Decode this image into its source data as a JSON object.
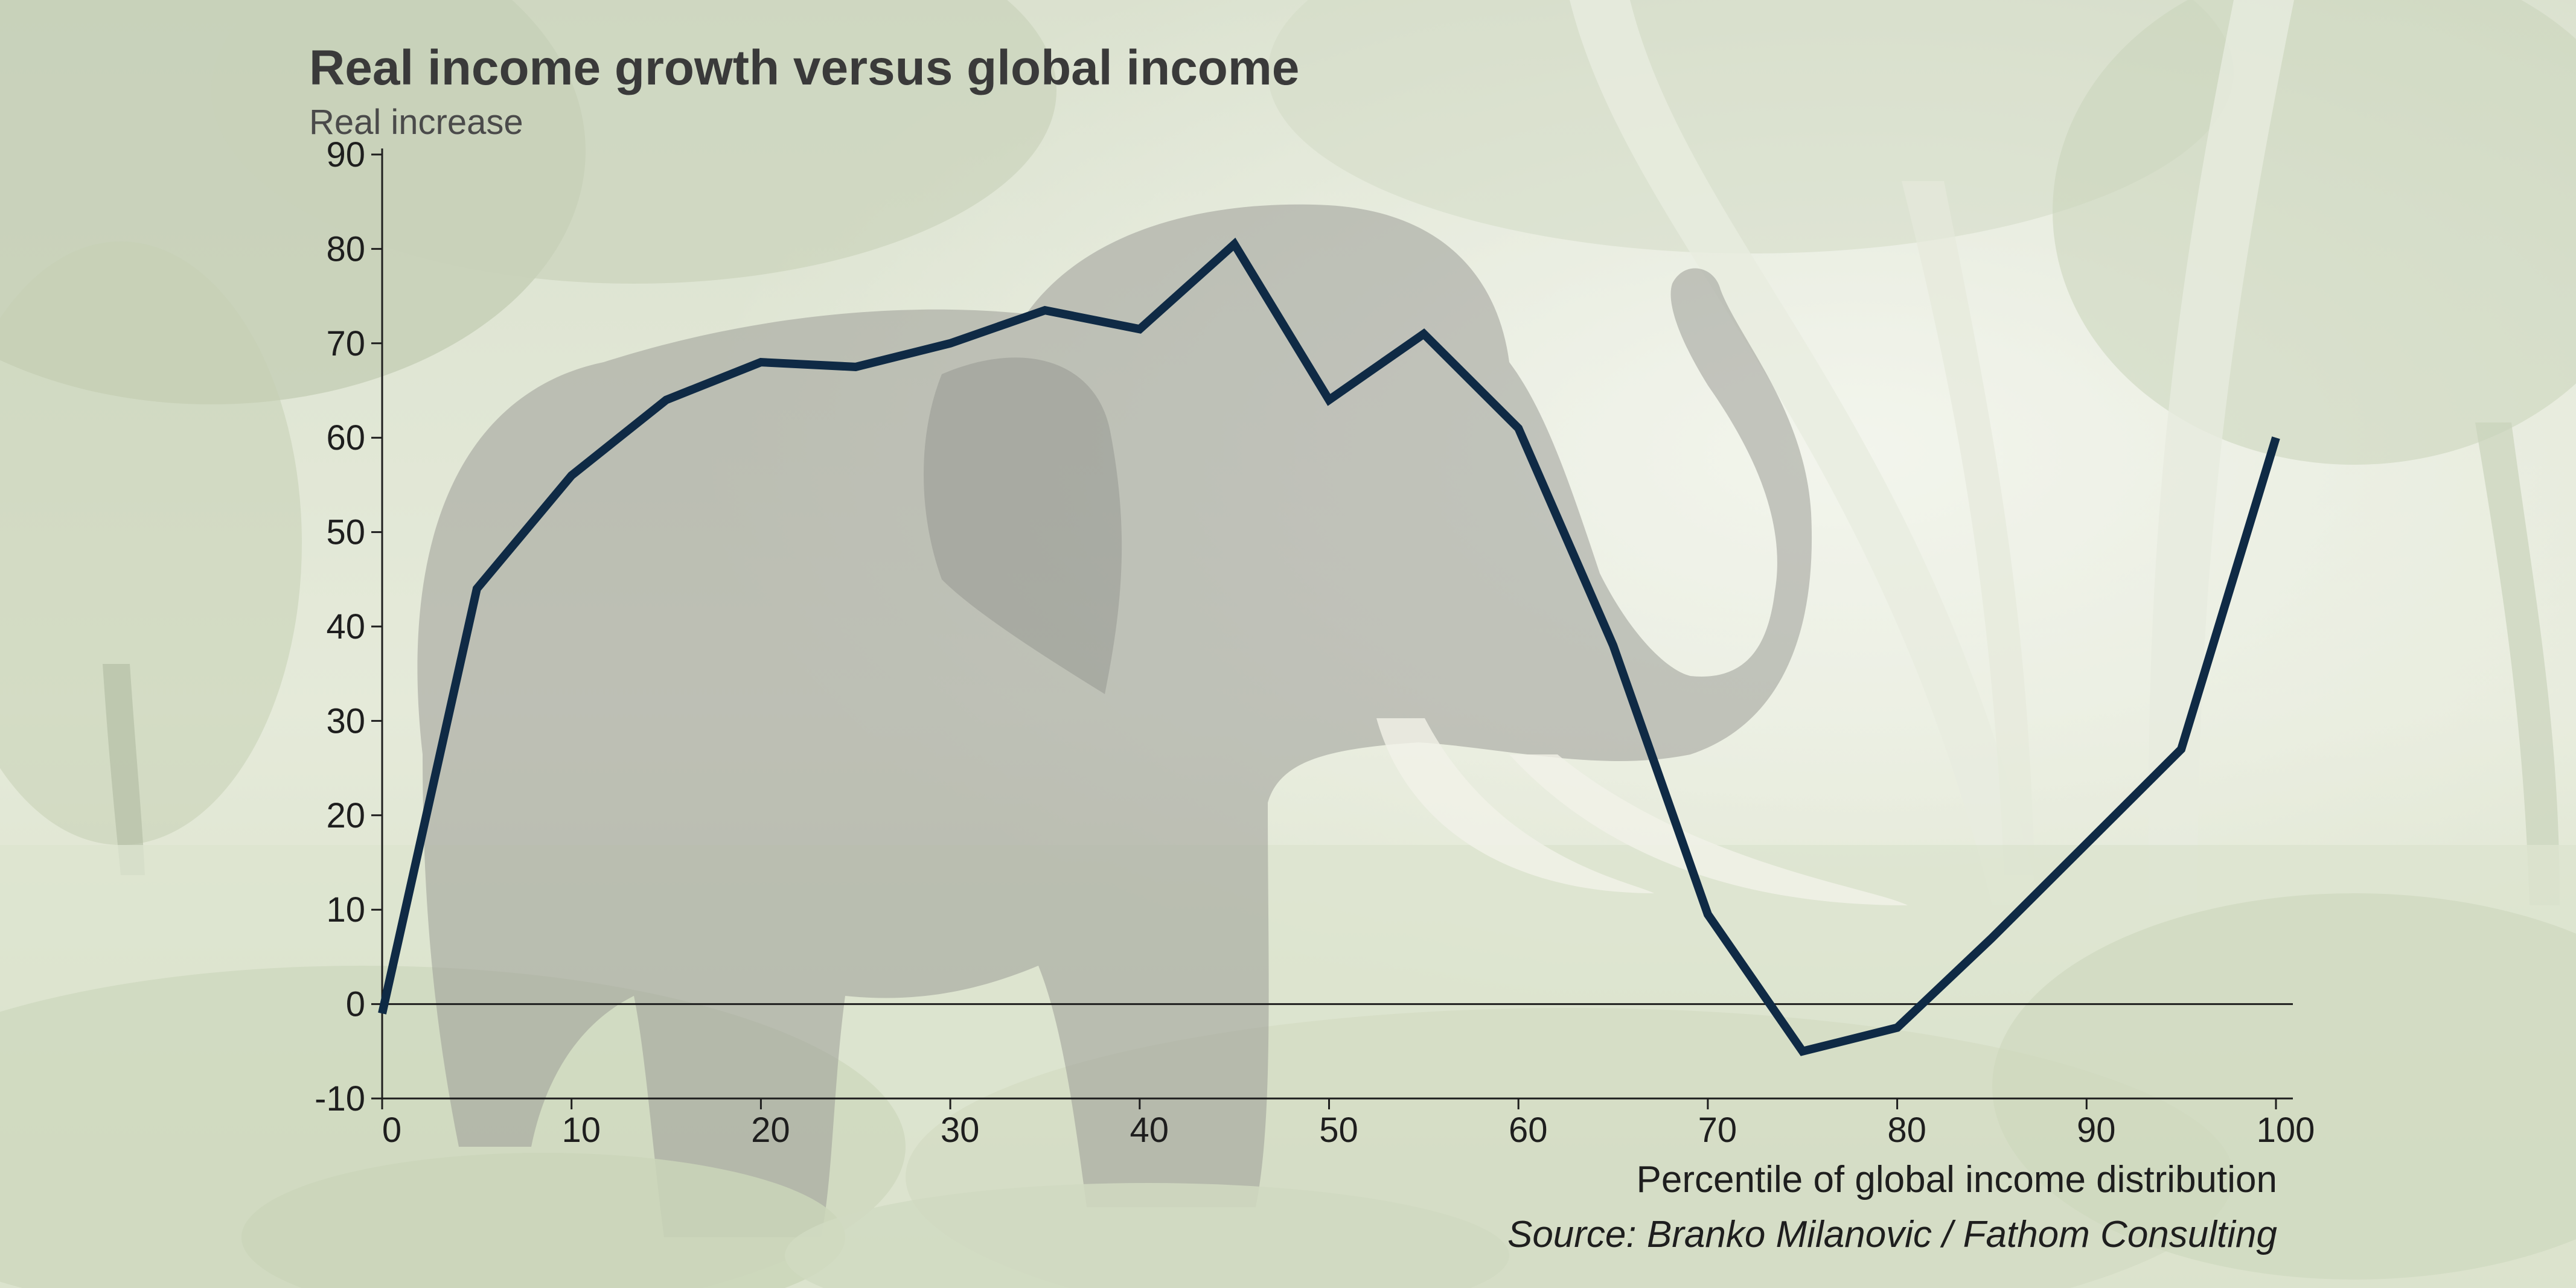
{
  "colors": {
    "line": "#0f2a45",
    "axis": "#1e1e1e",
    "zero_line": "#1e1e1e",
    "title": "#3a3a3a",
    "background_overlay": "#f2f4ec"
  },
  "photo": {
    "description_icon": "elephant-photo"
  },
  "chart_data": {
    "type": "line",
    "title": "Real income growth versus global income",
    "subtitle": "Real increase",
    "xlabel": "Percentile of global income distribution",
    "ylabel": "Real increase",
    "source": "Source: Branko Milanovic / Fathom Consulting",
    "xlim": [
      0,
      100
    ],
    "ylim": [
      -10,
      90
    ],
    "xticks": [
      0,
      10,
      20,
      30,
      40,
      50,
      60,
      70,
      80,
      90,
      100
    ],
    "yticks": [
      -10,
      0,
      10,
      20,
      30,
      40,
      50,
      60,
      70,
      80,
      90
    ],
    "xtick_labels": [
      "0",
      "10",
      "20",
      "30",
      "40",
      "50",
      "60",
      "70",
      "80",
      "90",
      "100"
    ],
    "ytick_labels": [
      "-10",
      "0",
      "10",
      "20",
      "30",
      "40",
      "50",
      "60",
      "70",
      "80",
      "90"
    ],
    "grid": false,
    "zero_line": true,
    "series": [
      {
        "name": "Real income growth",
        "x": [
          0,
          5,
          10,
          15,
          20,
          25,
          30,
          35,
          40,
          45,
          50,
          55,
          60,
          65,
          70,
          75,
          80,
          85,
          90,
          95,
          100
        ],
        "values": [
          -1,
          44,
          56,
          64,
          68,
          67.5,
          70,
          73.5,
          71.5,
          80.5,
          64,
          71,
          61,
          38,
          9.5,
          -5,
          -2.5,
          7,
          17,
          27,
          60
        ]
      }
    ]
  }
}
